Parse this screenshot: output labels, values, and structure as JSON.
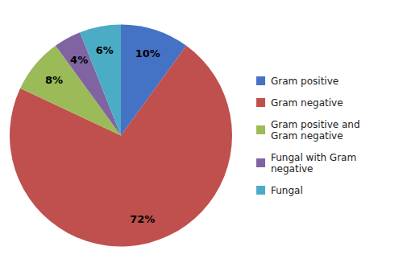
{
  "chart_data": {
    "type": "pie",
    "categories": [
      "Gram positive",
      "Gram negative",
      "Gram positive and\nGram negative",
      "Fungal with Gram\nnegative",
      "Fungal"
    ],
    "values": [
      10,
      72,
      8,
      4,
      6
    ],
    "value_labels": [
      "10%",
      "72%",
      "8%",
      "4%",
      "6%"
    ],
    "colors": [
      "#4472C4",
      "#C0504D",
      "#9BBB59",
      "#8064A2",
      "#4BACC6"
    ],
    "data_labels": true,
    "legend": "right"
  }
}
